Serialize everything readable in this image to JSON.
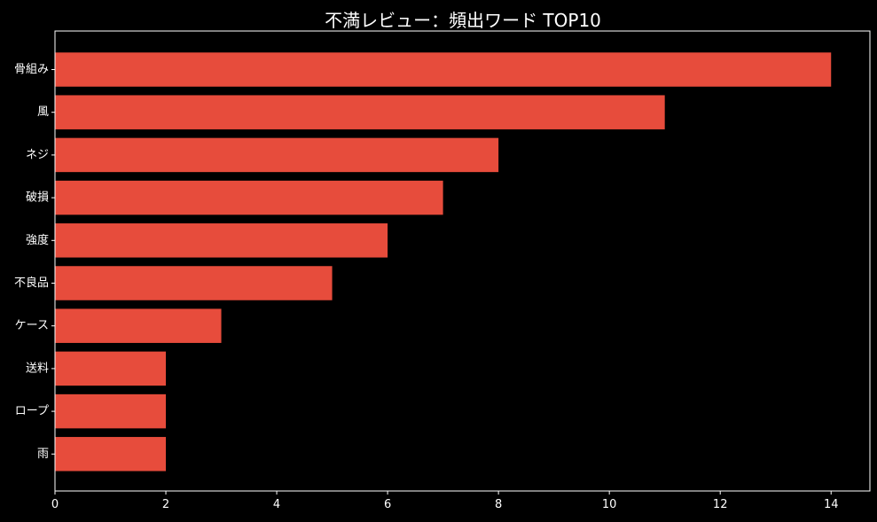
{
  "chart_data": {
    "type": "bar",
    "orientation": "horizontal",
    "title": "不満レビュー：頻出ワード TOP10",
    "xlabel": "",
    "ylabel": "",
    "categories": [
      "骨組み",
      "風",
      "ネジ",
      "破損",
      "強度",
      "不良品",
      "ケース",
      "送料",
      "ロープ",
      "雨"
    ],
    "values": [
      14,
      11,
      8,
      7,
      6,
      5,
      3,
      2,
      2,
      2
    ],
    "xlim": [
      0,
      14.7
    ],
    "xticks": [
      0,
      2,
      4,
      6,
      8,
      10,
      12,
      14
    ],
    "grid": false,
    "colors": {
      "bar": "#e74c3c",
      "background": "#000000",
      "axes": "#ffffff",
      "text": "#ffffff"
    }
  }
}
